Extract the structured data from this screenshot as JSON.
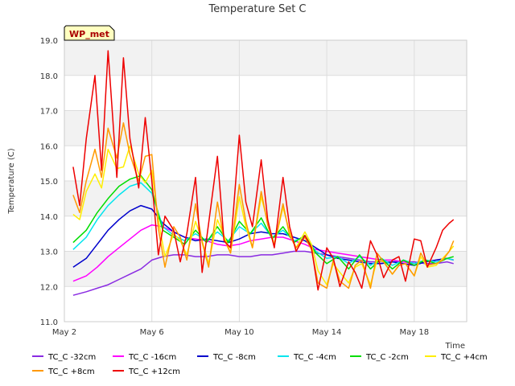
{
  "chart_data": {
    "type": "line",
    "title": "Temperature Set C",
    "xlabel": "Time",
    "ylabel": "Temperature (C)",
    "site_label": "WP_met",
    "ylim": [
      11.0,
      19.0
    ],
    "xlim_days": [
      2.0,
      20.4
    ],
    "y_ticks": [
      "11.0",
      "12.0",
      "13.0",
      "14.0",
      "15.0",
      "16.0",
      "17.0",
      "18.0",
      "19.0"
    ],
    "x_ticks": [
      {
        "day": 2,
        "label": "May 2"
      },
      {
        "day": 6,
        "label": "May 6"
      },
      {
        "day": 10,
        "label": "May 10"
      },
      {
        "day": 14,
        "label": "May 14"
      },
      {
        "day": 18,
        "label": "May 18"
      }
    ],
    "series": [
      {
        "name": "TC_C -32cm",
        "color": "#8a2be2",
        "x": [
          2.4,
          3.0,
          3.5,
          4.0,
          4.5,
          5.0,
          5.5,
          6.0,
          6.5,
          7.0,
          7.5,
          8.0,
          8.5,
          9.0,
          9.5,
          10.0,
          10.5,
          11.0,
          11.5,
          12.0,
          12.5,
          13.0,
          13.5,
          14.0,
          14.5,
          15.0,
          15.5,
          16.0,
          16.5,
          17.0,
          17.5,
          18.0,
          18.5,
          19.0,
          19.5,
          19.8
        ],
        "y": [
          11.75,
          11.85,
          11.95,
          12.05,
          12.2,
          12.35,
          12.5,
          12.75,
          12.85,
          12.9,
          12.9,
          12.85,
          12.85,
          12.9,
          12.9,
          12.85,
          12.85,
          12.9,
          12.9,
          12.95,
          13.0,
          13.0,
          12.95,
          12.9,
          12.85,
          12.8,
          12.75,
          12.7,
          12.7,
          12.7,
          12.7,
          12.7,
          12.65,
          12.65,
          12.7,
          12.65
        ]
      },
      {
        "name": "TC_C -16cm",
        "color": "#ff00ff",
        "x": [
          2.4,
          3.0,
          3.5,
          4.0,
          4.5,
          5.0,
          5.5,
          6.0,
          6.5,
          7.0,
          7.5,
          8.0,
          8.5,
          9.0,
          9.5,
          10.0,
          10.5,
          11.0,
          11.5,
          12.0,
          12.5,
          13.0,
          13.5,
          14.0,
          14.5,
          15.0,
          15.5,
          16.0,
          16.5,
          17.0,
          17.5,
          18.0,
          18.5,
          19.0,
          19.5,
          19.8
        ],
        "y": [
          12.15,
          12.3,
          12.55,
          12.85,
          13.1,
          13.35,
          13.6,
          13.75,
          13.7,
          13.55,
          13.4,
          13.35,
          13.3,
          13.2,
          13.15,
          13.2,
          13.3,
          13.35,
          13.4,
          13.4,
          13.3,
          13.2,
          13.05,
          13.0,
          12.95,
          12.9,
          12.85,
          12.8,
          12.75,
          12.75,
          12.7,
          12.65,
          12.7,
          12.75,
          12.8,
          12.75
        ]
      },
      {
        "name": "TC_C -8cm",
        "color": "#0000cc",
        "x": [
          2.4,
          3.0,
          3.5,
          4.0,
          4.5,
          5.0,
          5.5,
          6.0,
          6.5,
          7.0,
          7.5,
          8.0,
          8.5,
          9.0,
          9.5,
          10.0,
          10.5,
          11.0,
          11.5,
          12.0,
          12.5,
          13.0,
          13.5,
          14.0,
          14.5,
          15.0,
          15.5,
          16.0,
          16.5,
          17.0,
          17.5,
          18.0,
          18.5,
          19.0,
          19.5,
          19.8
        ],
        "y": [
          12.55,
          12.8,
          13.2,
          13.6,
          13.9,
          14.15,
          14.3,
          14.2,
          13.8,
          13.55,
          13.4,
          13.3,
          13.35,
          13.3,
          13.25,
          13.35,
          13.5,
          13.55,
          13.5,
          13.5,
          13.4,
          13.3,
          13.1,
          12.9,
          12.8,
          12.75,
          12.7,
          12.65,
          12.65,
          12.7,
          12.65,
          12.6,
          12.7,
          12.75,
          12.8,
          12.75
        ]
      },
      {
        "name": "TC_C -4cm",
        "color": "#00e5ee",
        "x": [
          2.4,
          3.0,
          3.5,
          4.0,
          4.5,
          5.0,
          5.5,
          6.0,
          6.5,
          7.0,
          7.5,
          8.0,
          8.5,
          9.0,
          9.5,
          10.0,
          10.5,
          11.0,
          11.5,
          12.0,
          12.5,
          13.0,
          13.5,
          14.0,
          14.5,
          15.0,
          15.5,
          16.0,
          16.5,
          17.0,
          17.5,
          18.0,
          18.5,
          19.0,
          19.5,
          19.8
        ],
        "y": [
          13.05,
          13.4,
          13.9,
          14.3,
          14.6,
          14.85,
          14.95,
          14.65,
          13.7,
          13.45,
          13.3,
          13.5,
          13.3,
          13.55,
          13.3,
          13.7,
          13.5,
          13.8,
          13.4,
          13.6,
          13.3,
          13.4,
          13.0,
          12.8,
          12.85,
          12.65,
          12.85,
          12.6,
          12.8,
          12.6,
          12.75,
          12.65,
          12.75,
          12.7,
          12.8,
          12.75
        ]
      },
      {
        "name": "TC_C -2cm",
        "color": "#00dd00",
        "x": [
          2.4,
          3.0,
          3.5,
          4.0,
          4.5,
          5.0,
          5.5,
          6.0,
          6.5,
          7.0,
          7.5,
          8.0,
          8.5,
          9.0,
          9.5,
          10.0,
          10.5,
          11.0,
          11.5,
          12.0,
          12.5,
          13.0,
          13.5,
          14.0,
          14.5,
          15.0,
          15.5,
          16.0,
          16.5,
          17.0,
          17.5,
          18.0,
          18.5,
          19.0,
          19.5,
          19.8
        ],
        "y": [
          13.25,
          13.6,
          14.1,
          14.5,
          14.85,
          15.05,
          15.15,
          14.75,
          13.6,
          13.4,
          13.2,
          13.6,
          13.25,
          13.7,
          13.25,
          13.85,
          13.5,
          13.95,
          13.35,
          13.7,
          13.25,
          13.45,
          12.95,
          12.65,
          12.85,
          12.5,
          12.9,
          12.5,
          12.8,
          12.5,
          12.75,
          12.6,
          12.75,
          12.65,
          12.8,
          12.85
        ]
      },
      {
        "name": "TC_C +4cm",
        "color": "#ffee00",
        "x": [
          2.4,
          2.7,
          3.0,
          3.4,
          3.7,
          4.0,
          4.4,
          4.7,
          5.0,
          5.4,
          5.7,
          6.0,
          6.3,
          6.6,
          7.0,
          7.3,
          7.6,
          8.0,
          8.3,
          8.6,
          9.0,
          9.3,
          9.6,
          10.0,
          10.3,
          10.6,
          11.0,
          11.3,
          11.6,
          12.0,
          12.3,
          12.6,
          13.0,
          13.3,
          13.6,
          14.0,
          14.3,
          14.6,
          15.0,
          15.3,
          15.6,
          16.0,
          16.3,
          16.6,
          17.0,
          17.3,
          17.6,
          18.0,
          18.3,
          18.6,
          19.0,
          19.3,
          19.6,
          19.8
        ],
        "y": [
          14.05,
          13.9,
          14.7,
          15.2,
          14.8,
          15.9,
          15.35,
          15.4,
          16.0,
          15.2,
          14.95,
          15.3,
          13.9,
          12.85,
          13.5,
          13.3,
          12.9,
          13.85,
          13.3,
          12.65,
          13.9,
          13.45,
          12.95,
          14.55,
          13.7,
          13.1,
          14.55,
          13.85,
          13.2,
          14.25,
          13.55,
          13.1,
          13.55,
          13.2,
          12.45,
          12.05,
          12.65,
          12.4,
          12.1,
          12.55,
          12.65,
          12.05,
          12.75,
          12.7,
          12.35,
          12.6,
          12.65,
          12.3,
          12.85,
          12.55,
          12.6,
          12.8,
          13.0,
          13.15
        ]
      },
      {
        "name": "TC_C +8cm",
        "color": "#ff9900",
        "x": [
          2.4,
          2.7,
          3.0,
          3.4,
          3.7,
          4.0,
          4.4,
          4.7,
          5.0,
          5.4,
          5.7,
          6.0,
          6.3,
          6.6,
          7.0,
          7.3,
          7.6,
          8.0,
          8.3,
          8.6,
          9.0,
          9.3,
          9.6,
          10.0,
          10.3,
          10.6,
          11.0,
          11.3,
          11.6,
          12.0,
          12.3,
          12.6,
          13.0,
          13.3,
          13.6,
          14.0,
          14.3,
          14.6,
          15.0,
          15.3,
          15.6,
          16.0,
          16.3,
          16.6,
          17.0,
          17.3,
          17.6,
          18.0,
          18.3,
          18.6,
          19.0,
          19.3,
          19.6,
          19.8
        ],
        "y": [
          14.6,
          14.1,
          15.0,
          15.9,
          15.1,
          16.5,
          15.65,
          16.65,
          15.75,
          15.0,
          15.7,
          15.75,
          13.65,
          12.55,
          13.7,
          13.4,
          12.75,
          14.35,
          13.25,
          12.55,
          14.4,
          13.35,
          12.95,
          14.9,
          13.85,
          13.1,
          14.7,
          13.75,
          13.15,
          14.35,
          13.45,
          13.1,
          13.4,
          13.05,
          12.1,
          11.95,
          12.75,
          12.15,
          11.95,
          12.6,
          12.75,
          11.95,
          12.95,
          12.7,
          12.35,
          12.6,
          12.65,
          12.3,
          12.95,
          12.6,
          12.65,
          12.75,
          13.0,
          13.3
        ]
      },
      {
        "name": "TC_C +12cm",
        "color": "#ee0000",
        "x": [
          2.4,
          2.7,
          3.0,
          3.4,
          3.7,
          4.0,
          4.4,
          4.7,
          5.0,
          5.4,
          5.7,
          6.0,
          6.3,
          6.6,
          7.0,
          7.3,
          7.6,
          8.0,
          8.3,
          8.6,
          9.0,
          9.3,
          9.6,
          10.0,
          10.3,
          10.6,
          11.0,
          11.3,
          11.6,
          12.0,
          12.3,
          12.6,
          13.0,
          13.3,
          13.6,
          14.0,
          14.3,
          14.6,
          15.0,
          15.3,
          15.6,
          16.0,
          16.3,
          16.6,
          17.0,
          17.3,
          17.6,
          18.0,
          18.3,
          18.6,
          19.0,
          19.3,
          19.6,
          19.8
        ],
        "y": [
          15.4,
          14.3,
          16.2,
          18.0,
          15.3,
          18.7,
          15.1,
          18.5,
          16.2,
          14.8,
          16.8,
          15.0,
          12.9,
          14.0,
          13.6,
          12.7,
          13.5,
          15.1,
          12.4,
          13.8,
          15.7,
          13.3,
          13.1,
          16.3,
          14.4,
          13.7,
          15.6,
          13.9,
          13.1,
          15.1,
          13.7,
          13.0,
          13.45,
          13.1,
          11.9,
          13.1,
          12.8,
          12.0,
          12.7,
          12.4,
          11.95,
          13.3,
          12.9,
          12.25,
          12.75,
          12.85,
          12.15,
          13.35,
          13.3,
          12.55,
          13.1,
          13.6,
          13.8,
          13.9
        ]
      }
    ]
  }
}
